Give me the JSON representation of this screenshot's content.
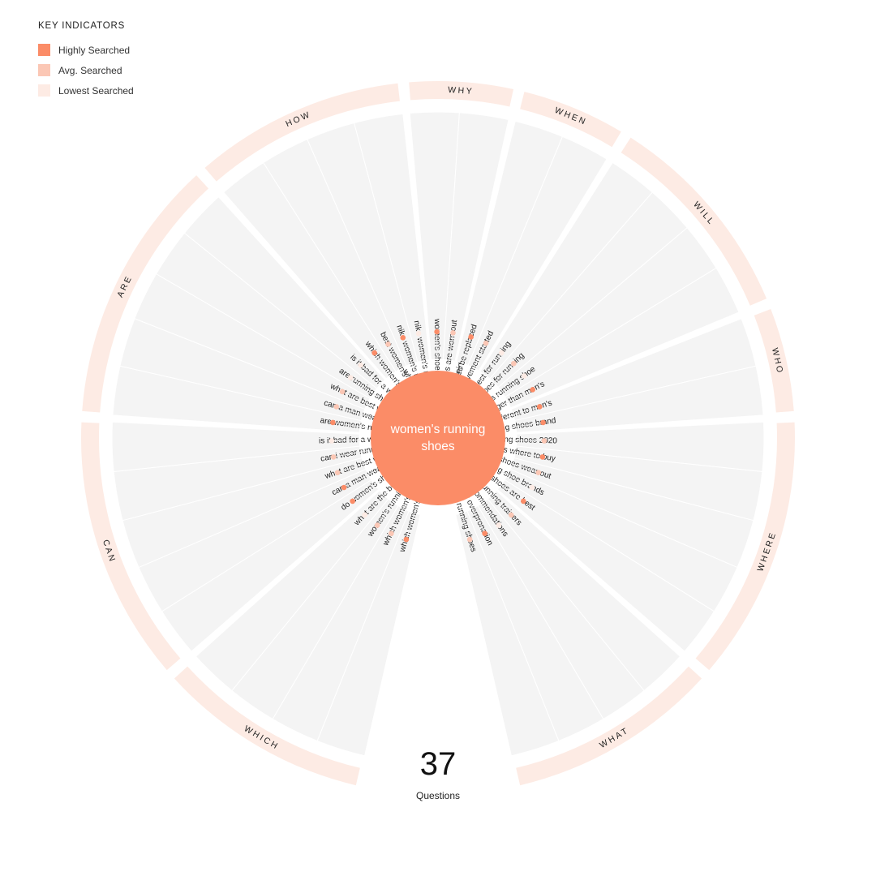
{
  "legend": {
    "title": "KEY INDICATORS",
    "items": [
      {
        "label": "Highly Searched",
        "color": "#fb8c67"
      },
      {
        "label": "Avg. Searched",
        "color": "#fbc7b5"
      },
      {
        "label": "Lowest Searched",
        "color": "#fdebe4"
      }
    ]
  },
  "center_label": "women's running shoes",
  "total_count": "37",
  "total_label": "Questions",
  "colors": {
    "accent": "#fb8c67",
    "ring": "#fdebe4",
    "segment": "#f4f4f4"
  },
  "groups": [
    {
      "name": "WHICH",
      "questions": [
        {
          "text": "which women's running shoes have the most cushioning",
          "level": "high"
        },
        {
          "text": "which women's running shoes are best",
          "level": "avg"
        },
        {
          "text": "women's running shoes recommendations",
          "level": "avg"
        },
        {
          "text": "what are the best women's running trainers",
          "level": "low"
        }
      ]
    },
    {
      "name": "CAN",
      "questions": [
        {
          "text": "do women's shoes run bigger than men's",
          "level": "high"
        },
        {
          "text": "can a man wear women's running shoes",
          "level": "high"
        },
        {
          "text": "what are best women's running shoes",
          "level": "avg"
        },
        {
          "text": "can i wear running shoes for work",
          "level": "avg"
        },
        {
          "text": "is it bad for a woman to wear men's running shoes",
          "level": "low"
        }
      ]
    },
    {
      "name": "ARE",
      "questions": [
        {
          "text": "are women's running shoes different to men's",
          "level": "high"
        },
        {
          "text": "can a man wear a women's running shoe",
          "level": "avg"
        },
        {
          "text": "what are best women's running shoes",
          "level": "avg"
        },
        {
          "text": "are running shoes unisex",
          "level": "low"
        },
        {
          "text": "is it bad for a woman to wear men's running shoes",
          "level": "low"
        }
      ]
    },
    {
      "name": "HOW",
      "questions": [
        {
          "text": "which women's running shoes are best",
          "level": "high"
        },
        {
          "text": "best women's running shoes for the money",
          "level": "avg"
        },
        {
          "text": "nike women's running shoes reviews",
          "level": "high"
        },
        {
          "text": "nike women's running shoes ratings",
          "level": "low"
        }
      ]
    },
    {
      "name": "WHY",
      "questions": [
        {
          "text": "women's shoes running",
          "level": "high"
        },
        {
          "text": "when running shoes are worn out",
          "level": "avg"
        }
      ]
    },
    {
      "name": "WHEN",
      "questions": [
        {
          "text": "when should running shoes be replaced",
          "level": "high"
        },
        {
          "text": "when women's rights movement started",
          "level": "avg"
        }
      ]
    },
    {
      "name": "WILL",
      "questions": [
        {
          "text": "which on shoe is best for running",
          "level": "low"
        },
        {
          "text": "do i need running shoes for running",
          "level": "avg"
        },
        {
          "text": "can a man wear a women's running shoe",
          "level": "low"
        },
        {
          "text": "do women's shoes run bigger than men's",
          "level": "high"
        }
      ]
    },
    {
      "name": "WHO",
      "questions": [
        {
          "text": "are women's running shoes different to men's",
          "level": "high"
        },
        {
          "text": "best women's running shoes brand",
          "level": "high"
        }
      ]
    },
    {
      "name": "WHERE",
      "questions": [
        {
          "text": "best women's running shoes 2020",
          "level": "avg"
        },
        {
          "text": "running shoes where to buy",
          "level": "high"
        },
        {
          "text": "where should running shoes wear out",
          "level": "avg"
        },
        {
          "text": "top women's running shoe brands",
          "level": "low"
        },
        {
          "text": "which women's running shoes are best",
          "level": "high"
        }
      ]
    },
    {
      "name": "WHAT",
      "questions": [
        {
          "text": "what are the best women's running trainers",
          "level": "avg"
        },
        {
          "text": "women's running shoes recommendations",
          "level": "low"
        },
        {
          "text": "what the best women's running shoe for overpronation",
          "level": "high"
        },
        {
          "text": "what are best women's running shoes",
          "level": "avg"
        }
      ]
    }
  ]
}
